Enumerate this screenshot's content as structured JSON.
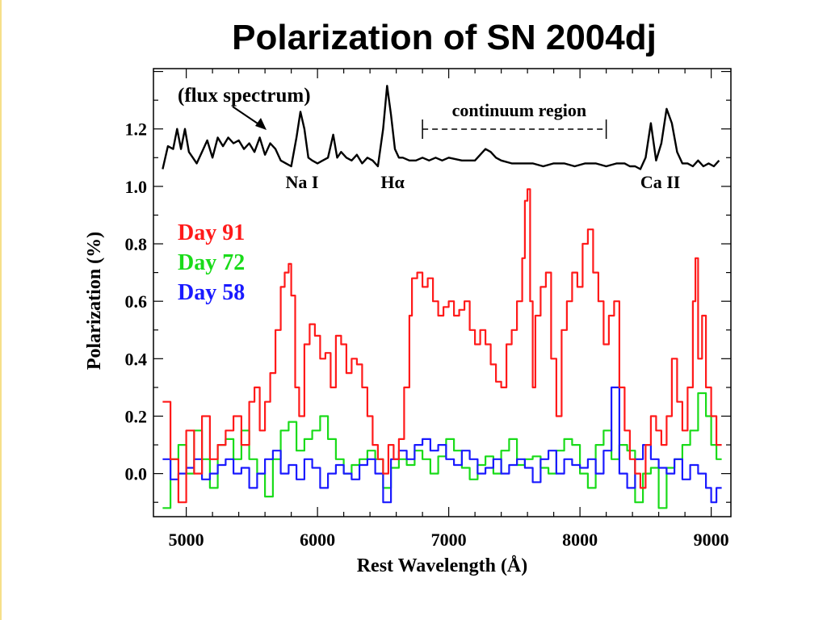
{
  "slide": {
    "title": "Polarization of SN 2004dj"
  },
  "chart_data": {
    "type": "line",
    "title": "Polarization of SN 2004dj",
    "xlabel": "Rest Wavelength (Å)",
    "ylabel": "Polarization (%)",
    "xlim": [
      4750,
      9150
    ],
    "ylim": [
      -0.15,
      1.41
    ],
    "xticks": [
      5000,
      6000,
      7000,
      8000,
      9000
    ],
    "yticks": [
      0.0,
      0.2,
      0.4,
      0.6,
      0.8,
      1.0,
      1.2
    ],
    "grid": false,
    "legend_position": "top-left",
    "series": [
      {
        "name": "Day 91",
        "color": "#ff1a1a",
        "step": true,
        "x": [
          4820,
          4880,
          4940,
          5000,
          5060,
          5120,
          5180,
          5240,
          5300,
          5360,
          5420,
          5480,
          5520,
          5560,
          5600,
          5640,
          5680,
          5720,
          5750,
          5780,
          5800,
          5830,
          5860,
          5900,
          5940,
          5980,
          6020,
          6060,
          6100,
          6140,
          6180,
          6220,
          6260,
          6300,
          6340,
          6380,
          6420,
          6460,
          6500,
          6540,
          6580,
          6620,
          6660,
          6700,
          6720,
          6760,
          6800,
          6840,
          6880,
          6920,
          6960,
          7000,
          7040,
          7080,
          7120,
          7160,
          7200,
          7240,
          7280,
          7320,
          7360,
          7400,
          7440,
          7480,
          7520,
          7560,
          7580,
          7600,
          7620,
          7640,
          7660,
          7700,
          7740,
          7780,
          7820,
          7860,
          7900,
          7940,
          7980,
          8020,
          8060,
          8100,
          8140,
          8180,
          8220,
          8260,
          8300,
          8340,
          8380,
          8420,
          8460,
          8500,
          8540,
          8580,
          8620,
          8660,
          8700,
          8740,
          8780,
          8820,
          8860,
          8880,
          8900,
          8930,
          8960,
          9000,
          9040
        ],
        "y": [
          0.25,
          0.05,
          -0.1,
          0.15,
          0.0,
          0.2,
          0.05,
          0.1,
          0.15,
          0.2,
          0.1,
          0.25,
          0.3,
          0.15,
          0.25,
          0.35,
          0.5,
          0.65,
          0.7,
          0.73,
          0.62,
          0.3,
          0.2,
          0.45,
          0.52,
          0.48,
          0.4,
          0.42,
          0.3,
          0.48,
          0.45,
          0.35,
          0.4,
          0.38,
          0.3,
          0.2,
          0.1,
          0.05,
          0.0,
          0.1,
          0.05,
          0.12,
          0.3,
          0.55,
          0.68,
          0.7,
          0.65,
          0.68,
          0.6,
          0.55,
          0.58,
          0.6,
          0.55,
          0.57,
          0.6,
          0.5,
          0.45,
          0.5,
          0.45,
          0.38,
          0.32,
          0.3,
          0.45,
          0.5,
          0.6,
          0.75,
          0.95,
          0.99,
          0.6,
          0.3,
          0.55,
          0.65,
          0.7,
          0.4,
          0.2,
          0.5,
          0.6,
          0.7,
          0.65,
          0.8,
          0.85,
          0.7,
          0.6,
          0.45,
          0.55,
          0.6,
          0.3,
          0.15,
          0.05,
          0.0,
          -0.05,
          0.1,
          0.2,
          0.15,
          0.1,
          0.2,
          0.4,
          0.25,
          0.15,
          0.3,
          0.6,
          0.75,
          0.4,
          0.55,
          0.3,
          0.2,
          0.1
        ]
      },
      {
        "name": "Day 72",
        "color": "#1adb1a",
        "step": true,
        "x": [
          4820,
          4880,
          4940,
          5000,
          5060,
          5120,
          5180,
          5240,
          5300,
          5360,
          5420,
          5480,
          5540,
          5600,
          5660,
          5720,
          5780,
          5840,
          5900,
          5960,
          6020,
          6080,
          6140,
          6200,
          6260,
          6320,
          6380,
          6440,
          6500,
          6560,
          6620,
          6680,
          6740,
          6800,
          6860,
          6920,
          6980,
          7040,
          7100,
          7160,
          7220,
          7280,
          7340,
          7400,
          7460,
          7520,
          7580,
          7640,
          7700,
          7760,
          7820,
          7880,
          7940,
          8000,
          8060,
          8120,
          8180,
          8240,
          8300,
          8360,
          8420,
          8480,
          8540,
          8600,
          8660,
          8720,
          8780,
          8840,
          8900,
          8960,
          9000,
          9040
        ],
        "y": [
          -0.12,
          0.05,
          0.1,
          0.0,
          0.15,
          0.05,
          -0.05,
          0.1,
          0.12,
          0.05,
          0.15,
          0.05,
          0.0,
          -0.08,
          0.05,
          0.15,
          0.18,
          0.08,
          0.12,
          0.15,
          0.2,
          0.12,
          0.05,
          0.0,
          0.03,
          0.05,
          0.08,
          0.05,
          -0.05,
          0.02,
          0.05,
          0.03,
          0.08,
          0.05,
          0.0,
          0.06,
          0.12,
          0.08,
          0.02,
          -0.02,
          0.03,
          0.06,
          0.0,
          0.08,
          0.12,
          0.03,
          0.05,
          0.06,
          0.02,
          0.0,
          0.08,
          0.12,
          0.1,
          0.0,
          -0.05,
          0.1,
          0.15,
          0.05,
          0.1,
          0.08,
          -0.1,
          0.0,
          0.02,
          -0.12,
          0.02,
          0.05,
          0.1,
          0.15,
          0.28,
          0.2,
          0.1,
          0.05
        ]
      },
      {
        "name": "Day 58",
        "color": "#1a1aff",
        "step": true,
        "x": [
          4820,
          4880,
          4940,
          5000,
          5060,
          5120,
          5180,
          5240,
          5300,
          5360,
          5420,
          5480,
          5540,
          5600,
          5660,
          5720,
          5780,
          5840,
          5900,
          5960,
          6020,
          6080,
          6140,
          6200,
          6260,
          6320,
          6380,
          6440,
          6500,
          6560,
          6620,
          6680,
          6740,
          6800,
          6860,
          6920,
          6980,
          7040,
          7100,
          7160,
          7220,
          7280,
          7340,
          7400,
          7460,
          7520,
          7580,
          7640,
          7700,
          7760,
          7820,
          7880,
          7940,
          8000,
          8060,
          8120,
          8180,
          8240,
          8300,
          8360,
          8420,
          8480,
          8540,
          8600,
          8660,
          8720,
          8780,
          8840,
          8900,
          8960,
          9000,
          9040
        ],
        "y": [
          0.05,
          -0.02,
          0.0,
          0.02,
          0.05,
          -0.02,
          0.0,
          0.03,
          0.05,
          0.0,
          0.02,
          -0.05,
          0.0,
          0.05,
          0.08,
          0.0,
          0.03,
          -0.02,
          0.05,
          0.02,
          -0.05,
          0.0,
          0.03,
          0.0,
          -0.02,
          0.03,
          0.05,
          0.0,
          -0.1,
          0.05,
          0.08,
          0.05,
          0.1,
          0.12,
          0.08,
          0.1,
          0.05,
          0.03,
          0.08,
          0.05,
          0.0,
          0.02,
          0.05,
          0.0,
          0.03,
          0.05,
          0.02,
          -0.03,
          0.05,
          0.08,
          0.0,
          0.05,
          0.03,
          0.02,
          0.05,
          0.0,
          0.08,
          0.3,
          0.0,
          -0.05,
          0.05,
          0.1,
          0.05,
          0.02,
          0.0,
          0.05,
          -0.02,
          0.03,
          0.0,
          -0.05,
          -0.1,
          -0.05
        ]
      },
      {
        "name": "flux spectrum",
        "color": "#000000",
        "step": false,
        "x": [
          4820,
          4860,
          4900,
          4930,
          4960,
          4990,
          5020,
          5050,
          5080,
          5120,
          5160,
          5200,
          5240,
          5280,
          5320,
          5360,
          5400,
          5440,
          5480,
          5520,
          5560,
          5600,
          5640,
          5680,
          5720,
          5760,
          5800,
          5840,
          5870,
          5900,
          5930,
          5960,
          6000,
          6040,
          6080,
          6120,
          6150,
          6180,
          6220,
          6260,
          6300,
          6340,
          6380,
          6420,
          6460,
          6500,
          6530,
          6560,
          6590,
          6620,
          6650,
          6700,
          6750,
          6800,
          6850,
          6900,
          6950,
          7000,
          7100,
          7200,
          7280,
          7320,
          7360,
          7400,
          7480,
          7560,
          7640,
          7720,
          7800,
          7880,
          7960,
          8040,
          8120,
          8200,
          8280,
          8340,
          8380,
          8420,
          8460,
          8500,
          8540,
          8580,
          8620,
          8660,
          8700,
          8740,
          8780,
          8820,
          8860,
          8900,
          8940,
          8980,
          9020,
          9060
        ],
        "y": [
          1.06,
          1.14,
          1.13,
          1.2,
          1.13,
          1.2,
          1.12,
          1.1,
          1.08,
          1.12,
          1.16,
          1.1,
          1.17,
          1.14,
          1.17,
          1.15,
          1.16,
          1.13,
          1.15,
          1.12,
          1.17,
          1.11,
          1.15,
          1.13,
          1.09,
          1.08,
          1.07,
          1.17,
          1.26,
          1.2,
          1.1,
          1.09,
          1.08,
          1.09,
          1.1,
          1.18,
          1.1,
          1.12,
          1.1,
          1.09,
          1.11,
          1.08,
          1.1,
          1.09,
          1.07,
          1.2,
          1.35,
          1.25,
          1.13,
          1.1,
          1.1,
          1.09,
          1.09,
          1.1,
          1.09,
          1.1,
          1.09,
          1.1,
          1.09,
          1.09,
          1.13,
          1.12,
          1.1,
          1.09,
          1.08,
          1.08,
          1.08,
          1.07,
          1.08,
          1.08,
          1.07,
          1.08,
          1.08,
          1.07,
          1.08,
          1.08,
          1.07,
          1.07,
          1.06,
          1.1,
          1.22,
          1.09,
          1.15,
          1.27,
          1.22,
          1.12,
          1.08,
          1.08,
          1.07,
          1.09,
          1.07,
          1.08,
          1.07,
          1.09
        ]
      }
    ],
    "annotations": {
      "flux_label": "(flux spectrum)",
      "continuum_label": "continuum region",
      "continuum_range": [
        6800,
        8200
      ],
      "line_labels": [
        {
          "text": "Na I",
          "x": 5870
        },
        {
          "text": "Hα",
          "x": 6560
        },
        {
          "text": "Ca II",
          "x": 8600
        }
      ]
    }
  }
}
